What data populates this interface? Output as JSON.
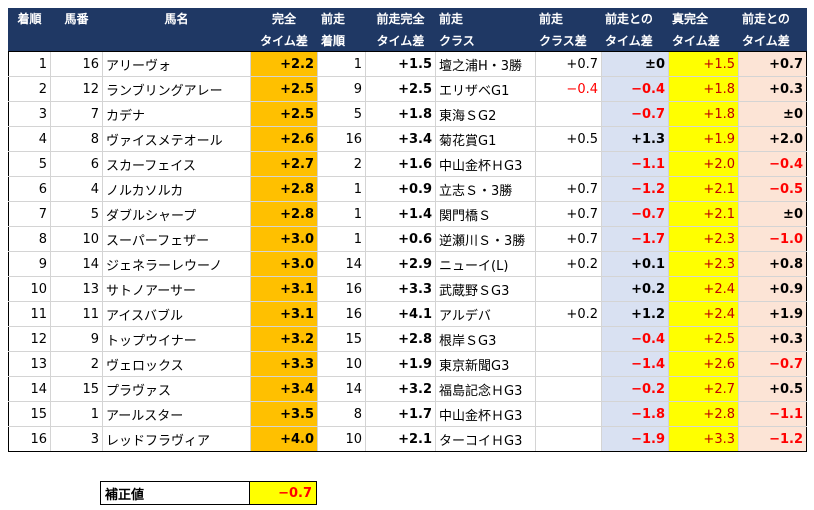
{
  "header": {
    "row1": [
      "着順",
      "馬番",
      "馬名",
      "完全",
      "前走",
      "前走完全",
      "前走",
      "前走",
      "前走との",
      "真完全",
      "前走との"
    ],
    "row2": [
      "",
      "",
      "",
      "タイム差",
      "着順",
      "タイム差",
      "クラス",
      "クラス差",
      "タイム差",
      "タイム差",
      "タイム差"
    ]
  },
  "rows": [
    {
      "rank": "1",
      "num": "16",
      "name": "アリーヴォ",
      "diff": "+2.2",
      "prev_rank": "1",
      "prev_diff": "+1.5",
      "class": "壇之浦H・3勝",
      "class_diff": "+0.7",
      "prev_gap": "±0",
      "true_diff": "+1.5",
      "gap": "+0.7"
    },
    {
      "rank": "2",
      "num": "12",
      "name": "ランブリングアレー",
      "diff": "+2.5",
      "prev_rank": "9",
      "prev_diff": "+2.5",
      "class": "エリザベG1",
      "class_diff": "−0.4",
      "prev_gap": "−0.4",
      "true_diff": "+1.8",
      "gap": "+0.3"
    },
    {
      "rank": "3",
      "num": "7",
      "name": "カデナ",
      "diff": "+2.5",
      "prev_rank": "5",
      "prev_diff": "+1.8",
      "class": "東海ＳG2",
      "class_diff": "",
      "prev_gap": "−0.7",
      "true_diff": "+1.8",
      "gap": "±0"
    },
    {
      "rank": "4",
      "num": "8",
      "name": "ヴァイスメテオール",
      "diff": "+2.6",
      "prev_rank": "16",
      "prev_diff": "+3.4",
      "class": "菊花賞G1",
      "class_diff": "+0.5",
      "prev_gap": "+1.3",
      "true_diff": "+1.9",
      "gap": "+2.0"
    },
    {
      "rank": "5",
      "num": "6",
      "name": "スカーフェイス",
      "diff": "+2.7",
      "prev_rank": "2",
      "prev_diff": "+1.6",
      "class": "中山金杯ＨG3",
      "class_diff": "",
      "prev_gap": "−1.1",
      "true_diff": "+2.0",
      "gap": "−0.4"
    },
    {
      "rank": "6",
      "num": "4",
      "name": "ノルカソルカ",
      "diff": "+2.8",
      "prev_rank": "1",
      "prev_diff": "+0.9",
      "class": "立志Ｓ・3勝",
      "class_diff": "+0.7",
      "prev_gap": "−1.2",
      "true_diff": "+2.1",
      "gap": "−0.5"
    },
    {
      "rank": "7",
      "num": "5",
      "name": "ダブルシャープ",
      "diff": "+2.8",
      "prev_rank": "1",
      "prev_diff": "+1.4",
      "class": "関門橋Ｓ",
      "class_diff": "+0.7",
      "prev_gap": "−0.7",
      "true_diff": "+2.1",
      "gap": "±0"
    },
    {
      "rank": "8",
      "num": "10",
      "name": "スーパーフェザー",
      "diff": "+3.0",
      "prev_rank": "1",
      "prev_diff": "+0.6",
      "class": "逆瀬川Ｓ・3勝",
      "class_diff": "+0.7",
      "prev_gap": "−1.7",
      "true_diff": "+2.3",
      "gap": "−1.0"
    },
    {
      "rank": "9",
      "num": "14",
      "name": "ジェネラーレウーノ",
      "diff": "+3.0",
      "prev_rank": "14",
      "prev_diff": "+2.9",
      "class": "ニューイ(L)",
      "class_diff": "+0.2",
      "prev_gap": "+0.1",
      "true_diff": "+2.3",
      "gap": "+0.8"
    },
    {
      "rank": "10",
      "num": "13",
      "name": "サトノアーサー",
      "diff": "+3.1",
      "prev_rank": "16",
      "prev_diff": "+3.3",
      "class": "武蔵野ＳG3",
      "class_diff": "",
      "prev_gap": "+0.2",
      "true_diff": "+2.4",
      "gap": "+0.9"
    },
    {
      "rank": "11",
      "num": "11",
      "name": "アイスバブル",
      "diff": "+3.1",
      "prev_rank": "16",
      "prev_diff": "+4.1",
      "class": "アルデバ",
      "class_diff": "+0.2",
      "prev_gap": "+1.2",
      "true_diff": "+2.4",
      "gap": "+1.9"
    },
    {
      "rank": "12",
      "num": "9",
      "name": "トップウイナー",
      "diff": "+3.2",
      "prev_rank": "15",
      "prev_diff": "+2.8",
      "class": "根岸ＳG3",
      "class_diff": "",
      "prev_gap": "−0.4",
      "true_diff": "+2.5",
      "gap": "+0.3"
    },
    {
      "rank": "13",
      "num": "2",
      "name": "ヴェロックス",
      "diff": "+3.3",
      "prev_rank": "10",
      "prev_diff": "+1.9",
      "class": "東京新聞G3",
      "class_diff": "",
      "prev_gap": "−1.4",
      "true_diff": "+2.6",
      "gap": "−0.7"
    },
    {
      "rank": "14",
      "num": "15",
      "name": "プラヴァス",
      "diff": "+3.4",
      "prev_rank": "14",
      "prev_diff": "+3.2",
      "class": "福島記念ＨG3",
      "class_diff": "",
      "prev_gap": "−0.2",
      "true_diff": "+2.7",
      "gap": "+0.5"
    },
    {
      "rank": "15",
      "num": "1",
      "name": "アールスター",
      "diff": "+3.5",
      "prev_rank": "8",
      "prev_diff": "+1.7",
      "class": "中山金杯ＨG3",
      "class_diff": "",
      "prev_gap": "−1.8",
      "true_diff": "+2.8",
      "gap": "−1.1"
    },
    {
      "rank": "16",
      "num": "3",
      "name": "レッドフラヴィア",
      "diff": "+4.0",
      "prev_rank": "10",
      "prev_diff": "+2.1",
      "class": "ターコイＨG3",
      "class_diff": "",
      "prev_gap": "−1.9",
      "true_diff": "+3.3",
      "gap": "−1.2"
    }
  ],
  "correction": {
    "label": "補正値",
    "value": "−0.7"
  },
  "colors": {
    "header_bg": "#1f3864",
    "orange": "#ffc000",
    "lavender": "#d9e1f2",
    "yellow": "#ffff00",
    "peach": "#fce4d6",
    "red": "#ff0000",
    "pink": "#ff33cc"
  }
}
